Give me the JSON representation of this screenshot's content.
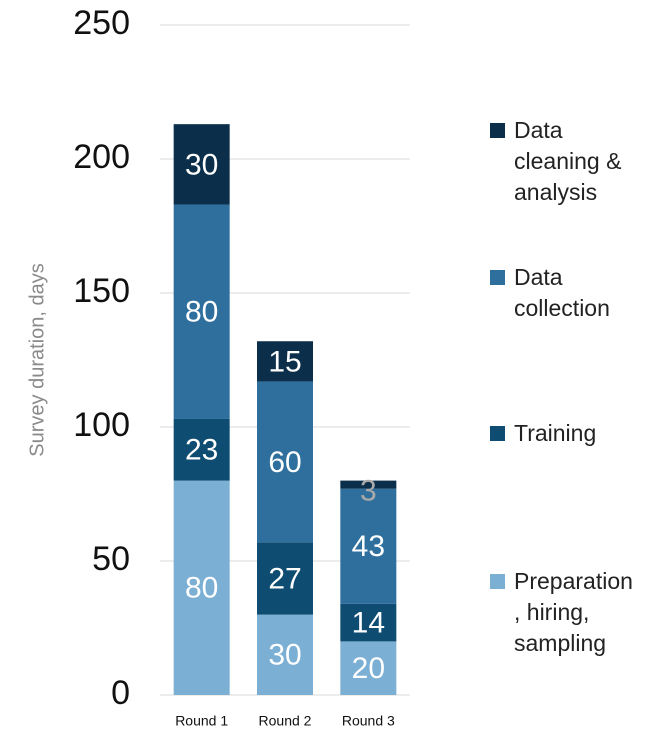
{
  "chart_data": {
    "type": "stacked_bar",
    "y_label": "Survey duration, days",
    "categories": [
      "Round 1",
      "Round 2",
      "Round 3"
    ],
    "series": [
      {
        "name": "Preparation, hiring, sampling",
        "color": "#7bafd4",
        "values": [
          80,
          30,
          20
        ]
      },
      {
        "name": "Training",
        "color": "#0e4c72",
        "values": [
          23,
          27,
          14
        ]
      },
      {
        "name": "Data collection",
        "color": "#2e6f9e",
        "values": [
          80,
          60,
          43
        ]
      },
      {
        "name": "Data cleaning & analysis",
        "color": "#0b2f4a",
        "values": [
          30,
          15,
          3
        ]
      }
    ],
    "ylim": [
      0,
      250
    ],
    "yticks": [
      0,
      50,
      100,
      150,
      200,
      250
    ],
    "grid": true,
    "legend": "right"
  }
}
